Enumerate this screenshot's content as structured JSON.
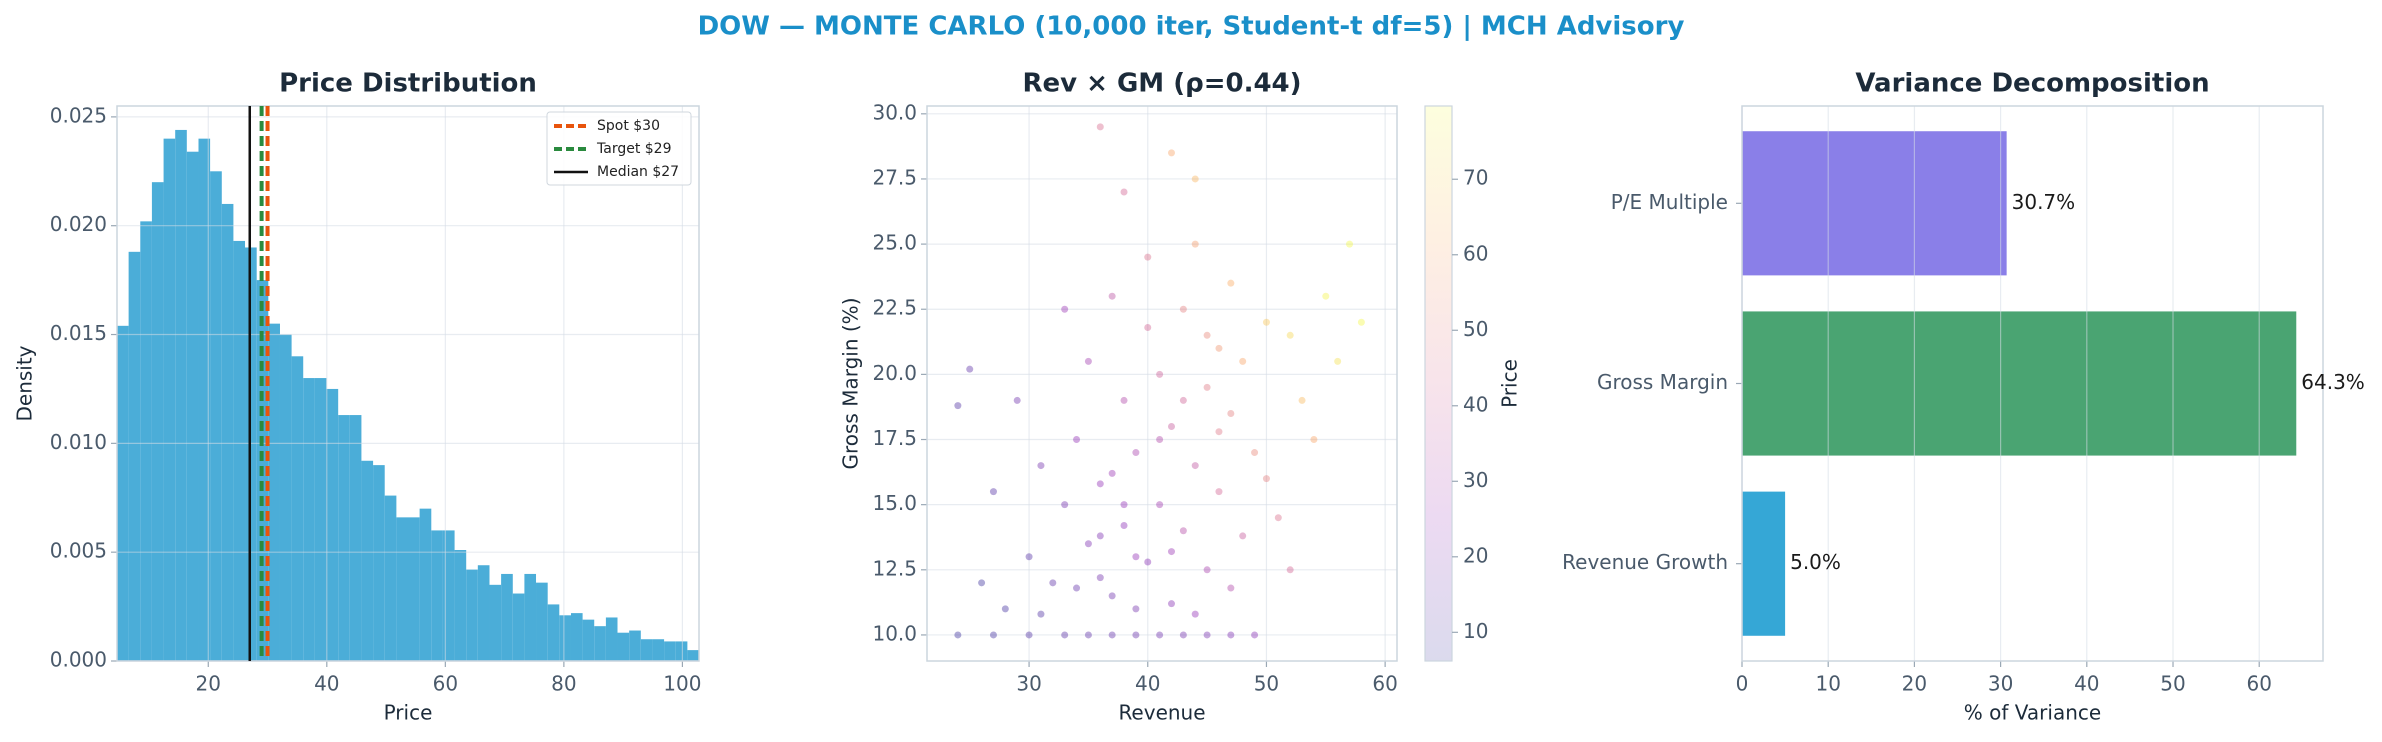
{
  "title": "DOW — MONTE CARLO (10,000 iter, Student-t df=5) | MCH Advisory",
  "chart_data": [
    {
      "type": "histogram",
      "title": "Price Distribution",
      "xlabel": "Price",
      "ylabel": "Density",
      "bins": [
        4.6,
        6.56,
        8.53,
        10.49,
        12.46,
        14.42,
        16.38,
        18.35,
        20.31,
        22.28,
        24.24,
        26.2,
        28.17,
        30.13,
        32.1,
        34.06,
        36.02,
        37.99,
        39.95,
        41.92,
        43.88,
        45.84,
        47.81,
        49.77,
        51.74,
        53.7,
        55.66,
        57.63,
        59.59,
        61.56,
        63.52,
        65.48,
        67.45,
        69.41,
        71.38,
        73.34,
        75.3,
        77.27,
        79.23,
        81.2,
        83.16,
        85.12,
        87.09,
        89.05,
        91.02,
        92.98,
        94.94,
        96.91,
        98.87,
        100.84,
        102.8
      ],
      "values": [
        0.0154,
        0.0188,
        0.0202,
        0.022,
        0.024,
        0.0244,
        0.0234,
        0.024,
        0.0225,
        0.021,
        0.0193,
        0.019,
        0.0175,
        0.0155,
        0.015,
        0.014,
        0.013,
        0.013,
        0.0125,
        0.0113,
        0.0113,
        0.0092,
        0.009,
        0.0076,
        0.0066,
        0.0066,
        0.007,
        0.006,
        0.006,
        0.0051,
        0.0042,
        0.0044,
        0.0035,
        0.004,
        0.0031,
        0.004,
        0.0036,
        0.0026,
        0.0021,
        0.0022,
        0.0019,
        0.0016,
        0.002,
        0.0013,
        0.0014,
        0.001,
        0.001,
        0.0009,
        0.0009,
        0.0005
      ],
      "color": "#4badd8",
      "xlim": [
        4.6,
        102.8
      ],
      "ylim": [
        0,
        0.0255
      ],
      "xticks": [
        20,
        40,
        60,
        80,
        100
      ],
      "yticks": [
        {
          "value": 0,
          "label": "0.000"
        },
        {
          "value": 0.005,
          "label": "0.005"
        },
        {
          "value": 0.01,
          "label": "0.010"
        },
        {
          "value": 0.015,
          "label": "0.015"
        },
        {
          "value": 0.02,
          "label": "0.020"
        },
        {
          "value": 0.025,
          "label": "0.025"
        }
      ],
      "grid": true,
      "legend": "upper right",
      "lines": [
        {
          "name": "Spot $30",
          "value": 30,
          "color": "#e8540c",
          "style": "dashed"
        },
        {
          "name": "Target $29",
          "value": 29,
          "color": "#2a8a3e",
          "style": "dashed"
        },
        {
          "name": "Median $27",
          "value": 27,
          "color": "#111111",
          "style": "solid"
        }
      ]
    },
    {
      "type": "scatter",
      "title": "Rev × GM (ρ=0.44)",
      "xlabel": "Revenue",
      "ylabel": "Gross Margin (%)",
      "x": [
        24,
        27,
        30,
        33,
        35,
        37,
        39,
        41,
        43,
        45,
        47,
        49,
        32,
        35,
        37,
        38,
        36,
        40,
        41,
        39,
        42,
        44,
        45,
        47,
        46,
        48,
        50,
        43,
        41,
        38,
        34,
        33,
        30,
        28,
        31,
        29,
        35,
        37,
        40,
        44,
        47,
        52,
        53,
        55,
        49,
        46,
        43,
        39,
        36,
        42,
        45,
        48,
        50,
        51,
        26,
        27,
        24,
        25,
        56,
        58,
        54,
        44,
        42,
        38,
        36,
        33,
        45,
        40,
        37,
        41,
        43,
        38,
        36,
        34,
        42,
        46,
        39,
        44,
        47,
        52,
        57,
        31
      ],
      "y": [
        10,
        10,
        10,
        10,
        10,
        10,
        10,
        10,
        10,
        10,
        10,
        10,
        12,
        13.5,
        11.5,
        14.2,
        15.8,
        12.8,
        15,
        17,
        18,
        16.5,
        19.5,
        18.5,
        21,
        20.5,
        22,
        22.5,
        20,
        19,
        17.5,
        15,
        13,
        11,
        16.5,
        19,
        20.5,
        23,
        24.5,
        25,
        23.5,
        21.5,
        19,
        23,
        17,
        15.5,
        14,
        13,
        12.2,
        11.2,
        12.5,
        13.8,
        16,
        14.5,
        12,
        15.5,
        18.8,
        20.2,
        20.5,
        22,
        17.5,
        27.5,
        28.5,
        27,
        29.5,
        22.5,
        21.5,
        21.8,
        16.2,
        17.5,
        19,
        15,
        13.8,
        11.8,
        13.2,
        17.8,
        11,
        10.8,
        11.8,
        12.5,
        25,
        10.8
      ],
      "c": [
        8,
        9,
        11,
        13,
        14,
        15,
        16,
        17,
        18,
        19,
        20,
        22,
        14,
        20,
        17,
        23,
        24,
        22,
        28,
        30,
        38,
        36,
        48,
        50,
        56,
        60,
        68,
        50,
        40,
        32,
        24,
        18,
        12,
        9,
        18,
        17,
        28,
        35,
        45,
        58,
        62,
        72,
        65,
        78,
        52,
        42,
        33,
        24,
        18,
        22,
        30,
        38,
        50,
        45,
        8,
        12,
        11,
        14,
        74,
        79,
        60,
        64,
        60,
        42,
        44,
        26,
        52,
        42,
        26,
        32,
        41,
        24,
        20,
        15,
        26,
        47,
        18,
        24,
        32,
        42,
        79,
        11
      ],
      "xlim": [
        21.4,
        61
      ],
      "ylim": [
        9,
        30.3
      ],
      "xticks": [
        30,
        40,
        50,
        60
      ],
      "yticks": [
        {
          "value": 10,
          "label": "10.0"
        },
        12.5,
        {
          "value": 15,
          "label": "15.0"
        },
        17.5,
        {
          "value": 20,
          "label": "20.0"
        },
        22.5,
        {
          "value": 25,
          "label": "25.0"
        },
        27.5,
        {
          "value": 30,
          "label": "30.0"
        }
      ],
      "grid": true,
      "colorbar": {
        "label": "Price",
        "lim": [
          6.2,
          79.7
        ],
        "ticks": [
          10,
          20,
          30,
          40,
          50,
          60,
          70
        ],
        "colormap": "plasma"
      }
    },
    {
      "type": "barh",
      "title": "Variance Decomposition",
      "xlabel": "% of Variance",
      "categories": [
        "Revenue Growth",
        "Gross Margin",
        "P/E Multiple"
      ],
      "values": [
        5.0,
        64.3,
        30.7
      ],
      "value_labels": [
        "5.0%",
        "64.3%",
        "30.7%"
      ],
      "colors": [
        "#35a7d6",
        "#4aa472",
        "#8a7fe8"
      ],
      "xlim": [
        0,
        67.4
      ],
      "xticks": [
        0,
        10,
        20,
        30,
        40,
        50,
        60
      ],
      "grid": true
    }
  ]
}
